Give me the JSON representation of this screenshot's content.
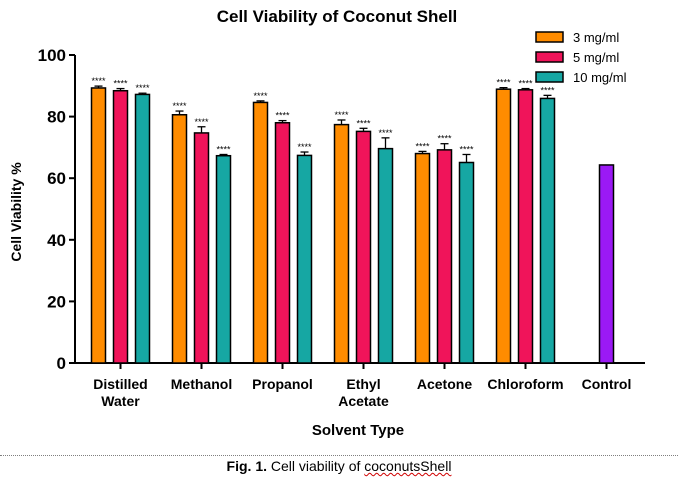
{
  "chart_data": {
    "type": "bar",
    "title": "Cell Viability of Coconut Shell",
    "xlabel": "Solvent Type",
    "ylabel": "Cell Viability %",
    "ylim": [
      0,
      100
    ],
    "yticks": [
      0,
      20,
      40,
      60,
      80,
      100
    ],
    "categories": [
      [
        "Distilled",
        "Water"
      ],
      [
        "Methanol"
      ],
      [
        "Propanol"
      ],
      [
        "Ethyl",
        "Acetate"
      ],
      [
        "Acetone"
      ],
      [
        "Chloroform"
      ],
      [
        "Control"
      ]
    ],
    "series": [
      {
        "name": "3 mg/ml",
        "color": "#FF8C00",
        "values": [
          89.3,
          80.6,
          84.6,
          77.4,
          68.0,
          88.9,
          null
        ],
        "errors": [
          0.6,
          1.2,
          0.5,
          1.5,
          0.7,
          0.5,
          null
        ],
        "labels": [
          "****",
          "****",
          "****",
          "****",
          "****",
          "****",
          null
        ]
      },
      {
        "name": "5 mg/ml",
        "color": "#F0145A",
        "values": [
          88.4,
          74.7,
          78.0,
          75.2,
          69.2,
          88.7,
          null
        ],
        "errors": [
          0.7,
          2.0,
          0.7,
          1.0,
          2.0,
          0.4,
          null
        ],
        "labels": [
          "****",
          "****",
          "****",
          "****",
          "****",
          "****",
          null
        ]
      },
      {
        "name": "10 mg/ml",
        "color": "#16A7A3",
        "values": [
          87.2,
          67.3,
          67.4,
          69.6,
          65.1,
          85.9,
          null
        ],
        "errors": [
          0.4,
          0.4,
          1.1,
          3.5,
          2.6,
          1.0,
          null
        ],
        "labels": [
          "****",
          "****",
          "****",
          "****",
          "****",
          "****",
          null
        ]
      }
    ],
    "control": {
      "value": 64.3,
      "color": "#9B19F5"
    },
    "legend_position": "top-right"
  },
  "caption": {
    "fig_label": "Fig. 1.",
    "text_prefix": "Cell viability of ",
    "text_squiggle": "coconutsShell"
  }
}
